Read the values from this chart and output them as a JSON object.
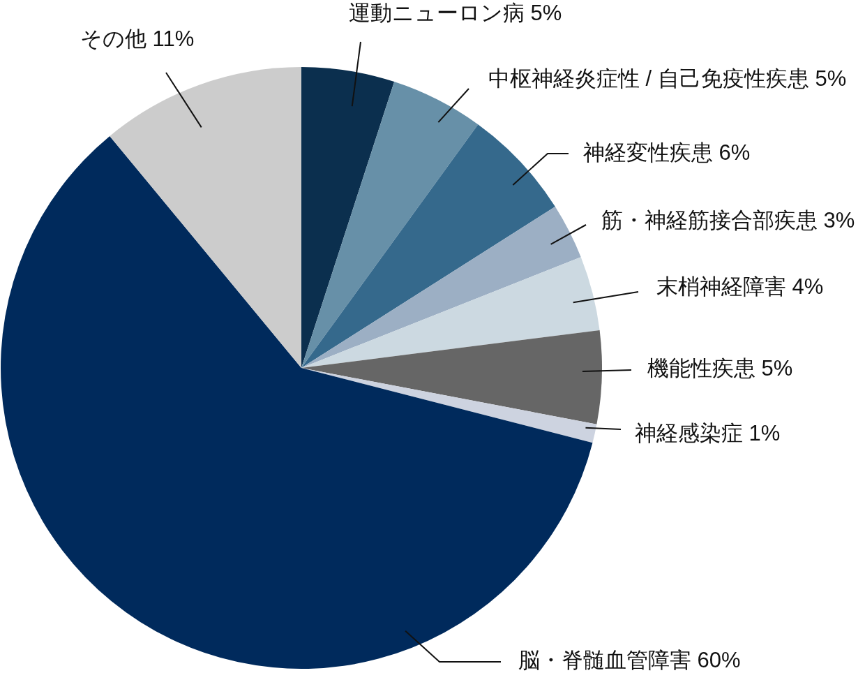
{
  "chart_data": {
    "type": "pie",
    "categories": [
      "運動ニューロン病",
      "中枢神経炎症性 / 自己免疫性疾患",
      "神経変性疾患",
      "筋・神経筋接合部疾患",
      "末梢神経障害",
      "機能性疾患",
      "神経感染症",
      "脳・脊髄血管障害",
      "その他"
    ],
    "values": [
      5,
      5,
      6,
      3,
      4,
      5,
      1,
      60,
      11
    ],
    "value_labels": [
      "5%",
      "5%",
      "6%",
      "3%",
      "4%",
      "5%",
      "1%",
      "60%",
      "11%"
    ],
    "colors": [
      "#0b2f4e",
      "#6790a8",
      "#35698c",
      "#9cafc4",
      "#ccd9e1",
      "#666666",
      "#cdd3e0",
      "#002a5c",
      "#cccccc"
    ]
  }
}
